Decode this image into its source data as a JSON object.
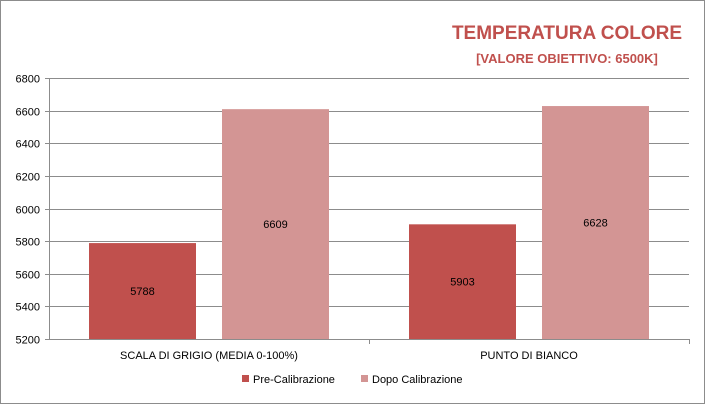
{
  "chart_data": {
    "type": "bar",
    "title": "TEMPERATURA COLORE",
    "subtitle": "[VALORE OBIETTIVO: 6500K]",
    "categories": [
      "SCALA DI GRIGIO (MEDIA  0-100%)",
      "PUNTO DI BIANCO"
    ],
    "series": [
      {
        "name": "Pre-Calibrazione",
        "values": [
          5788,
          5903
        ],
        "color": "#c0504d"
      },
      {
        "name": "Dopo Calibrazione",
        "values": [
          6609,
          6628
        ],
        "color": "#d39594"
      }
    ],
    "ylim": [
      5200,
      6800
    ],
    "yticks": [
      5200,
      5400,
      5600,
      5800,
      6000,
      6200,
      6400,
      6600,
      6800
    ],
    "grid": true,
    "legend_position": "bottom",
    "data_labels": true
  }
}
